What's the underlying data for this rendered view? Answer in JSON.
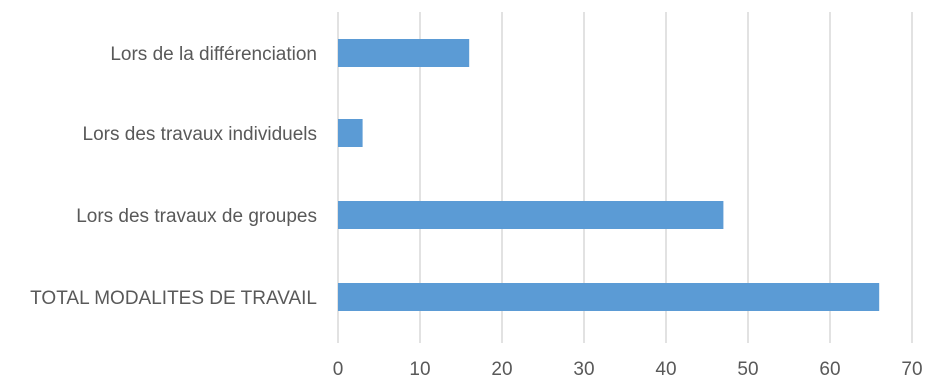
{
  "chart_data": {
    "type": "bar",
    "orientation": "horizontal",
    "categories": [
      "Lors de la différenciation",
      "Lors des travaux individuels",
      "Lors des travaux de groupes",
      "TOTAL MODALITES DE TRAVAIL"
    ],
    "values": [
      16,
      3,
      47,
      66
    ],
    "xlim": [
      0,
      70
    ],
    "xticks": [
      0,
      10,
      20,
      30,
      40,
      50,
      60,
      70
    ],
    "xtick_labels": [
      "0",
      "10",
      "20",
      "30",
      "40",
      "50",
      "60",
      "70"
    ],
    "grid": true,
    "legend": "none",
    "bar_color": "#5b9bd5"
  }
}
